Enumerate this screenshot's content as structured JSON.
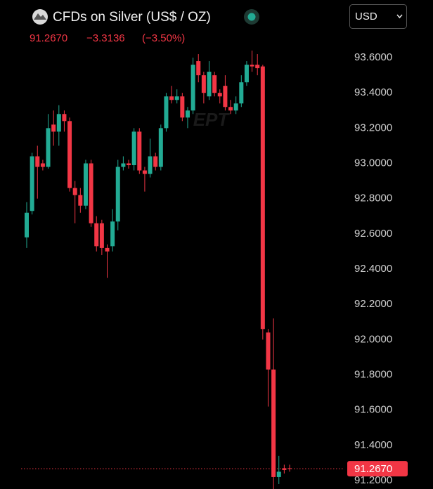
{
  "chart_data": {
    "type": "candlestick",
    "title": "CFDs on Silver (US$ / OZ)",
    "price": "91.2670",
    "change": "−3.3136",
    "change_pct": "(−3.50%)",
    "currency": "USD",
    "up_color": "#22ab94",
    "down_color": "#f23645",
    "ylim": [
      91.15,
      93.65
    ],
    "yticks": [
      {
        "value": 91.2,
        "label": "91.2000"
      },
      {
        "value": 91.4,
        "label": "91.4000"
      },
      {
        "value": 91.6,
        "label": "91.6000"
      },
      {
        "value": 91.8,
        "label": "91.8000"
      },
      {
        "value": 92.0,
        "label": "92.0000"
      },
      {
        "value": 92.2,
        "label": "92.2000"
      },
      {
        "value": 92.4,
        "label": "92.4000"
      },
      {
        "value": 92.6,
        "label": "92.6000"
      },
      {
        "value": 92.8,
        "label": "92.8000"
      },
      {
        "value": 93.0,
        "label": "93.0000"
      },
      {
        "value": 93.2,
        "label": "93.2000"
      },
      {
        "value": 93.4,
        "label": "93.4000"
      },
      {
        "value": 93.6,
        "label": "93.6000"
      }
    ],
    "last_price": {
      "value": 91.267,
      "label": "91.2670"
    },
    "open": [
      92.58,
      92.73,
      93.04,
      93.0,
      92.98,
      93.22,
      93.18,
      93.28,
      93.24,
      92.86,
      92.82,
      92.76,
      93.0,
      92.66,
      92.66,
      92.52,
      92.53,
      92.67,
      92.98,
      93.0,
      92.99,
      93.18,
      92.96,
      92.94,
      93.04,
      92.98,
      93.2,
      93.38,
      93.36,
      93.38,
      93.26,
      93.3,
      93.58,
      93.5,
      93.38,
      93.5,
      93.4,
      93.44,
      93.32,
      93.3,
      93.34,
      93.46,
      93.56,
      93.56,
      93.55,
      92.04,
      91.83,
      91.22,
      91.27,
      91.27
    ],
    "high": [
      92.78,
      93.06,
      93.1,
      93.02,
      93.28,
      93.3,
      93.33,
      93.3,
      93.26,
      92.9,
      92.86,
      93.02,
      93.02,
      92.7,
      92.68,
      92.54,
      92.74,
      93.02,
      93.04,
      93.02,
      93.2,
      93.2,
      92.98,
      93.14,
      93.06,
      93.22,
      93.4,
      93.44,
      93.42,
      93.4,
      93.32,
      93.6,
      93.62,
      93.52,
      93.58,
      93.52,
      93.42,
      93.5,
      93.36,
      93.38,
      93.5,
      93.58,
      93.64,
      93.62,
      93.56,
      92.06,
      92.12,
      91.34,
      91.29,
      91.29
    ],
    "low": [
      92.52,
      92.71,
      92.8,
      92.96,
      92.97,
      93.1,
      93.1,
      93.18,
      92.84,
      92.66,
      92.72,
      92.74,
      92.64,
      92.5,
      92.48,
      92.35,
      92.5,
      92.62,
      92.96,
      92.97,
      92.96,
      92.94,
      92.84,
      92.92,
      92.96,
      92.96,
      93.18,
      93.34,
      93.34,
      93.24,
      93.2,
      93.28,
      93.46,
      93.34,
      93.36,
      93.38,
      93.34,
      93.3,
      93.28,
      93.28,
      93.32,
      93.44,
      93.52,
      93.5,
      92.0,
      91.62,
      91.15,
      91.18,
      91.24,
      91.25
    ],
    "close": [
      92.72,
      93.04,
      92.98,
      92.98,
      93.2,
      93.18,
      93.28,
      93.24,
      92.86,
      92.82,
      92.76,
      93.0,
      92.66,
      92.53,
      92.52,
      92.5,
      92.67,
      92.98,
      93.0,
      92.99,
      93.18,
      92.96,
      92.94,
      93.04,
      92.98,
      93.2,
      93.38,
      93.36,
      93.38,
      93.26,
      93.3,
      93.56,
      93.5,
      93.4,
      93.52,
      93.4,
      93.38,
      93.32,
      93.3,
      93.34,
      93.46,
      93.56,
      93.55,
      93.54,
      92.06,
      91.83,
      91.22,
      91.25,
      91.26,
      91.267
    ]
  }
}
